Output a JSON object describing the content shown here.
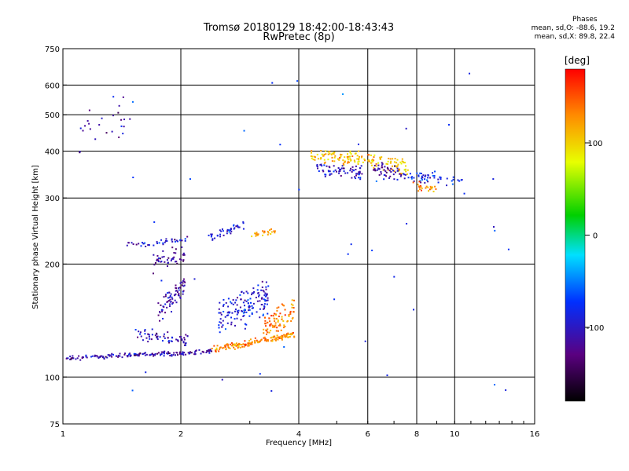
{
  "header": {
    "title_line1": "Tromsø 20180129 18:42:00-18:43:43",
    "title_line2": "RwPretec (8p)"
  },
  "phases": {
    "title": "Phases",
    "line_o": "mean, sd,O: -88.6, 19.2",
    "line_x": "mean, sd,X:  89.8, 22.4"
  },
  "colorbar": {
    "label": "[deg]",
    "ticks": [
      100,
      0,
      -100
    ],
    "tick_labels": [
      "100",
      "0",
      "-100"
    ],
    "range": [
      -180,
      180
    ]
  },
  "chart_data": {
    "type": "scatter",
    "title": "Tromsø 20180129 18:42:00-18:43:43",
    "subtitle": "RwPretec (8p)",
    "xlabel": "Frequency [MHz]",
    "ylabel": "Stationary phase Virtual Height [km]",
    "xscale": "log",
    "yscale": "log",
    "xlim": [
      1,
      16
    ],
    "ylim": [
      75,
      750
    ],
    "xticks": [
      1,
      2,
      4,
      6,
      8,
      10,
      16
    ],
    "yticks": [
      75,
      100,
      200,
      300,
      400,
      500,
      600,
      750
    ],
    "grid": true,
    "color_variable": "phase [deg]",
    "clusters": [
      {
        "f_start": 1.02,
        "f_end": 2.4,
        "h_start": 112,
        "h_end": 117,
        "spread": 2,
        "phase": -110,
        "n": 160
      },
      {
        "f_start": 1.55,
        "f_end": 2.1,
        "h_start": 130,
        "h_end": 125,
        "spread": 6,
        "phase": -105,
        "n": 60
      },
      {
        "f_start": 1.75,
        "f_end": 2.05,
        "h_start": 150,
        "h_end": 175,
        "spread": 12,
        "phase": -110,
        "n": 70
      },
      {
        "f_start": 1.7,
        "f_end": 2.05,
        "h_start": 200,
        "h_end": 215,
        "spread": 14,
        "phase": -115,
        "n": 45
      },
      {
        "f_start": 1.45,
        "f_end": 2.1,
        "h_start": 225,
        "h_end": 232,
        "spread": 6,
        "phase": -100,
        "n": 40
      },
      {
        "f_start": 2.35,
        "f_end": 2.9,
        "h_start": 235,
        "h_end": 255,
        "spread": 8,
        "phase": -90,
        "n": 40
      },
      {
        "f_start": 2.5,
        "f_end": 3.35,
        "h_start": 140,
        "h_end": 165,
        "spread": 20,
        "phase": -95,
        "n": 150
      },
      {
        "f_start": 2.4,
        "f_end": 3.9,
        "h_start": 118,
        "h_end": 130,
        "spread": 3,
        "phase": 130,
        "n": 150
      },
      {
        "f_start": 3.25,
        "f_end": 3.9,
        "h_start": 135,
        "h_end": 150,
        "spread": 14,
        "phase": 135,
        "n": 90
      },
      {
        "f_start": 3.0,
        "f_end": 3.5,
        "h_start": 240,
        "h_end": 245,
        "spread": 5,
        "phase": 120,
        "n": 25
      },
      {
        "f_start": 4.3,
        "f_end": 5.9,
        "h_start": 390,
        "h_end": 380,
        "spread": 20,
        "phase": 110,
        "n": 90
      },
      {
        "f_start": 4.4,
        "f_end": 5.8,
        "h_start": 360,
        "h_end": 350,
        "spread": 20,
        "phase": -100,
        "n": 70
      },
      {
        "f_start": 6.0,
        "f_end": 7.6,
        "h_start": 380,
        "h_end": 360,
        "spread": 22,
        "phase": 110,
        "n": 70
      },
      {
        "f_start": 6.2,
        "f_end": 7.5,
        "h_start": 360,
        "h_end": 345,
        "spread": 20,
        "phase": -110,
        "n": 50
      },
      {
        "f_start": 7.6,
        "f_end": 10.5,
        "h_start": 345,
        "h_end": 330,
        "spread": 14,
        "phase": -90,
        "n": 50
      },
      {
        "f_start": 7.8,
        "f_end": 9.0,
        "h_start": 325,
        "h_end": 315,
        "spread": 10,
        "phase": 130,
        "n": 25
      },
      {
        "f_start": 1.1,
        "f_end": 1.45,
        "h_start": 450,
        "h_end": 500,
        "spread": 80,
        "phase": -110,
        "n": 25
      },
      {
        "f_start": 1.1,
        "f_end": 16,
        "h_start": 90,
        "h_end": 650,
        "spread": 0,
        "phase": -80,
        "n": 45
      }
    ]
  }
}
